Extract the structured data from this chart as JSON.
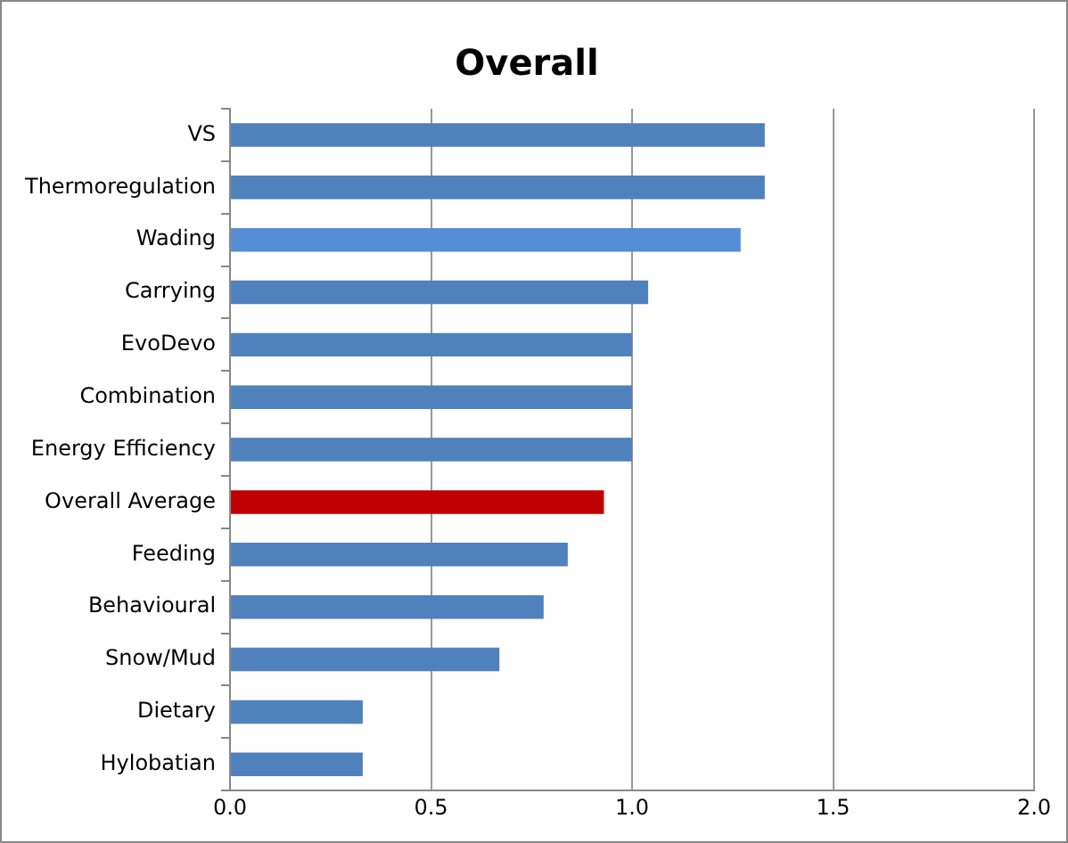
{
  "chart_data": {
    "type": "bar",
    "orientation": "horizontal",
    "title": "Overall",
    "categories": [
      "VS",
      "Thermoregulation",
      "Wading",
      "Carrying",
      "EvoDevo",
      "Combination",
      "Energy Efficiency",
      "Overall Average",
      "Feeding",
      "Behavioural",
      "Snow/Mud",
      "Dietary",
      "Hylobatian"
    ],
    "values": [
      1.33,
      1.33,
      1.27,
      1.04,
      1.0,
      1.0,
      1.0,
      0.93,
      0.84,
      0.78,
      0.67,
      0.33,
      0.33
    ],
    "colors": [
      "#4f81bd",
      "#4f81bd",
      "#558ed5",
      "#4f81bd",
      "#4f81bd",
      "#4f81bd",
      "#4f81bd",
      "#c00000",
      "#4f81bd",
      "#4f81bd",
      "#4f81bd",
      "#4f81bd",
      "#4f81bd"
    ],
    "xlim": [
      0,
      2
    ],
    "xticks": [
      {
        "value": 0,
        "label": "0.0"
      },
      {
        "value": 0.5,
        "label": "0.5"
      },
      {
        "value": 1,
        "label": "1.0"
      },
      {
        "value": 1.5,
        "label": "1.5"
      },
      {
        "value": 2,
        "label": "2.0"
      }
    ],
    "grid": "x"
  }
}
